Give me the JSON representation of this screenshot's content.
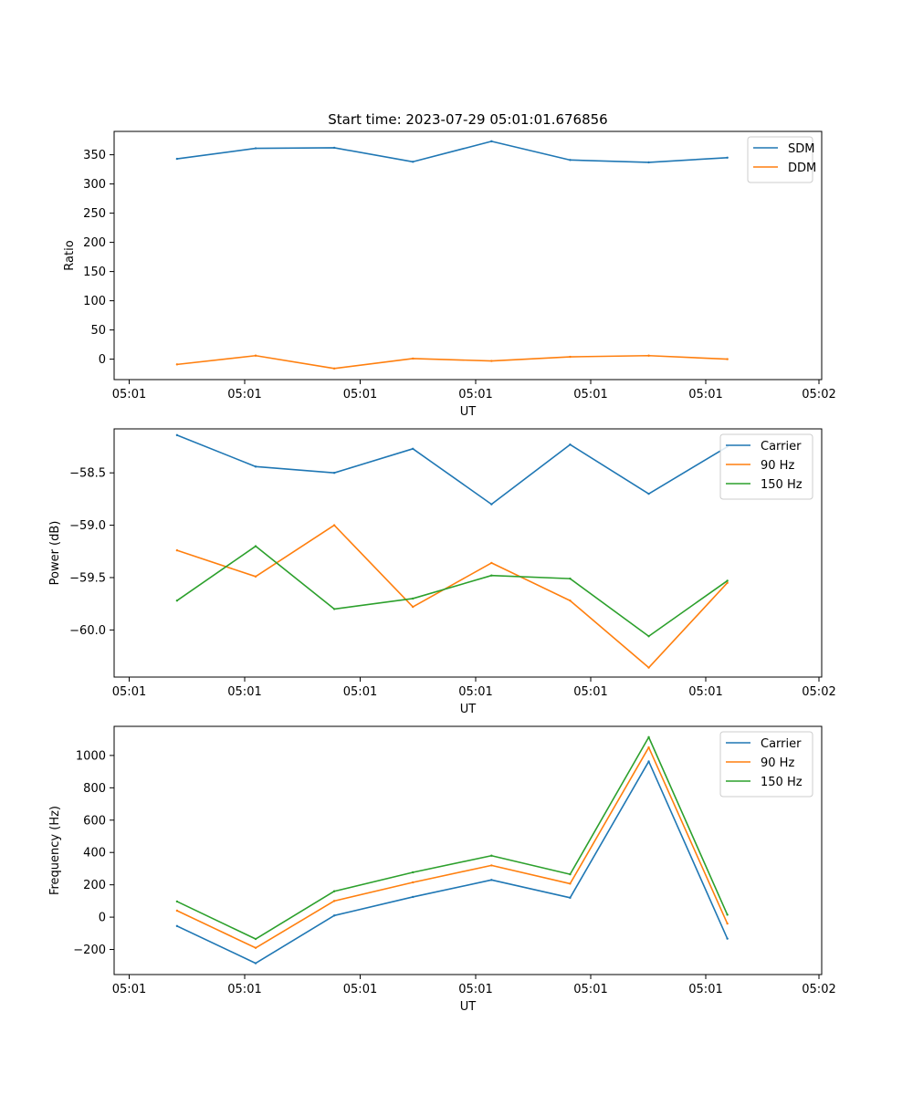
{
  "figure_title": "Start time: 2023-07-29 05:01:01.676856",
  "chart_data": [
    {
      "type": "line",
      "title": "Start time: 2023-07-29 05:01:01.676856",
      "xlabel": "UT",
      "ylabel": "Ratio",
      "x_ticks": [
        "05:01",
        "05:01",
        "05:01",
        "05:01",
        "05:01",
        "05:01",
        "05:02"
      ],
      "x": [
        1,
        2,
        3,
        4,
        5,
        6,
        7,
        8
      ],
      "xlim": [
        0.2,
        9.2
      ],
      "ylim": [
        -35,
        390
      ],
      "y_ticks": [
        0,
        50,
        100,
        150,
        200,
        250,
        300,
        350
      ],
      "legend_position": "top-right",
      "series": [
        {
          "name": "SDM",
          "color": "#1f77b4",
          "values": [
            343,
            361,
            362,
            338,
            373,
            341,
            337,
            345
          ]
        },
        {
          "name": "DDM",
          "color": "#ff7f0e",
          "values": [
            -9,
            6,
            -16,
            1,
            -3,
            4,
            6,
            0
          ]
        }
      ]
    },
    {
      "type": "line",
      "title": "",
      "xlabel": "UT",
      "ylabel": "Power (dB)",
      "x_ticks": [
        "05:01",
        "05:01",
        "05:01",
        "05:01",
        "05:01",
        "05:01",
        "05:02"
      ],
      "x": [
        1,
        2,
        3,
        4,
        5,
        6,
        7,
        8
      ],
      "xlim": [
        0.2,
        9.2
      ],
      "ylim": [
        -60.45,
        -58.08
      ],
      "y_ticks": [
        "-60.0",
        "-59.5",
        "-59.0",
        "-58.5"
      ],
      "y_tick_values": [
        -60.0,
        -59.5,
        -59.0,
        -58.5
      ],
      "legend_position": "top-right",
      "series": [
        {
          "name": "Carrier",
          "color": "#1f77b4",
          "values": [
            -58.14,
            -58.44,
            -58.5,
            -58.27,
            -58.8,
            -58.23,
            -58.7,
            -58.25
          ]
        },
        {
          "name": "90 Hz",
          "color": "#ff7f0e",
          "values": [
            -59.24,
            -59.49,
            -59.0,
            -59.78,
            -59.36,
            -59.72,
            -60.36,
            -59.55
          ]
        },
        {
          "name": "150 Hz",
          "color": "#2ca02c",
          "values": [
            -59.72,
            -59.2,
            -59.8,
            -59.7,
            -59.48,
            -59.51,
            -60.06,
            -59.53
          ]
        }
      ]
    },
    {
      "type": "line",
      "title": "",
      "xlabel": "UT",
      "ylabel": "Frequency (Hz)",
      "x_ticks": [
        "05:01",
        "05:01",
        "05:01",
        "05:01",
        "05:01",
        "05:01",
        "05:02"
      ],
      "x": [
        1,
        2,
        3,
        4,
        5,
        6,
        7,
        8
      ],
      "xlim": [
        0.2,
        9.2
      ],
      "ylim": [
        -355,
        1180
      ],
      "y_ticks": [
        -200,
        0,
        200,
        400,
        600,
        800,
        1000
      ],
      "legend_position": "top-right",
      "series": [
        {
          "name": "Carrier",
          "color": "#1f77b4",
          "values": [
            -55,
            -285,
            10,
            125,
            230,
            120,
            963,
            -133
          ]
        },
        {
          "name": "90 Hz",
          "color": "#ff7f0e",
          "values": [
            40,
            -190,
            100,
            215,
            320,
            207,
            1050,
            -40
          ]
        },
        {
          "name": "150 Hz",
          "color": "#2ca02c",
          "values": [
            97,
            -135,
            160,
            277,
            380,
            265,
            1113,
            15
          ]
        }
      ]
    }
  ]
}
